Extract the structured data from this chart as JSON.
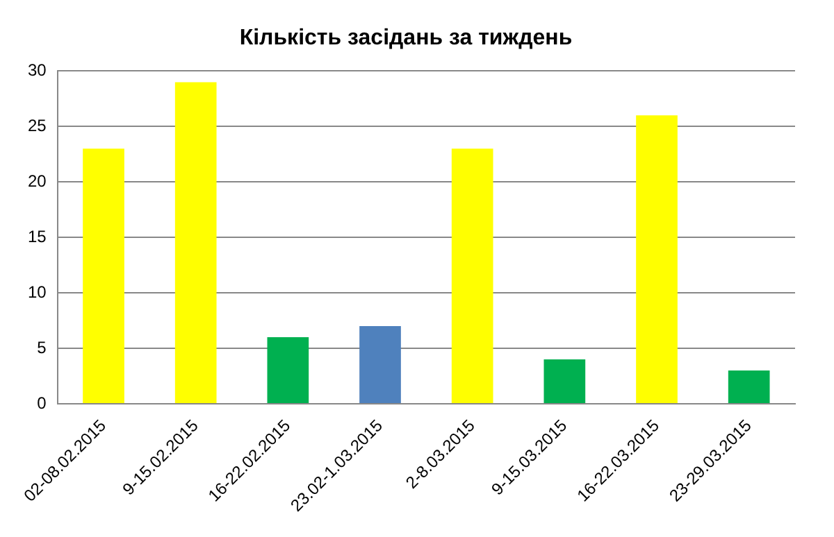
{
  "chart_data": {
    "type": "bar",
    "title": "Кількість засідань за тиждень",
    "categories": [
      "02-08.02.2015",
      "9-15.02.2015",
      "16-22.02.2015",
      "23.02-1.03.2015",
      "2-8.03.2015",
      "9-15.03.2015",
      "16-22.03.2015",
      "23-29.03.2015"
    ],
    "values": [
      23,
      29,
      6,
      7,
      23,
      4,
      26,
      3
    ],
    "colors": [
      "#ffff00",
      "#ffff00",
      "#00b050",
      "#4f81bd",
      "#ffff00",
      "#00b050",
      "#ffff00",
      "#00b050"
    ],
    "ylim": [
      0,
      30
    ],
    "yticks": [
      0,
      5,
      10,
      15,
      20,
      25,
      30
    ],
    "grid": "y",
    "legend": false
  }
}
